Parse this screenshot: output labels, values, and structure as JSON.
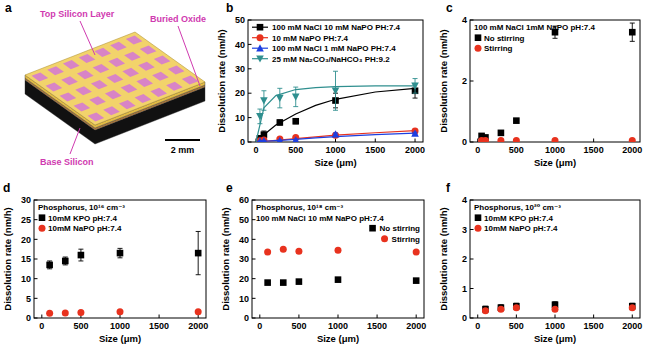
{
  "diagram": {
    "label": "a",
    "labels": [
      "Top Silicon Layer",
      "Buried Oxide",
      "Base Silicon"
    ],
    "scale_bar": "2 mm"
  },
  "chart_data": [
    {
      "label": "b",
      "type": "scatter",
      "x_label": "Size (μm)",
      "y_label": "Dissolution rate (nm/h)",
      "xlim": [
        -100,
        2100
      ],
      "xticks": [
        0,
        500,
        1000,
        1500,
        2000
      ],
      "ylim": [
        0,
        50
      ],
      "yticks": [
        0,
        10,
        20,
        30,
        40,
        50
      ],
      "legend": "upper left",
      "annotations": [],
      "x": [
        50,
        100,
        300,
        500,
        1000,
        2000
      ],
      "series": [
        {
          "name": "100 mM NaCl 10 mM NaPO PH:7.4",
          "color": "#000000",
          "marker": "square",
          "values": [
            1.5,
            3,
            8,
            8.5,
            17,
            21
          ],
          "errors": [
            1,
            1.5,
            1,
            1,
            3,
            3
          ],
          "fit": {
            "x": [
              0,
              100,
              250,
              500,
              750,
              1000,
              1500,
              2000
            ],
            "values": [
              0,
              3,
              7,
              11.5,
              15,
              17.5,
              20.5,
              22
            ]
          }
        },
        {
          "name": "10 mM NaPO PH:7.4",
          "color": "#e8321e",
          "marker": "circle",
          "values": [
            0.5,
            0.8,
            1.2,
            1.8,
            2.8,
            4.5
          ],
          "errors": [
            0.3,
            0.3,
            0.4,
            0.4,
            0.5,
            0.8
          ],
          "fit": {
            "x": [
              0,
              100,
              250,
              500,
              750,
              1000,
              1500,
              2000
            ],
            "values": [
              0,
              0.3,
              0.7,
              1.4,
              2.1,
              2.8,
              3.8,
              4.7
            ]
          }
        },
        {
          "name": "100 mM NaCl 1 mM NaPO PH:7.4",
          "color": "#1c3fe0",
          "marker": "triangle",
          "values": [
            0.3,
            0.5,
            0.6,
            0.8,
            3.2,
            3.5
          ],
          "errors": [
            0.2,
            0.2,
            0.2,
            0.3,
            0.5,
            0.5
          ],
          "fit": {
            "x": [
              0,
              100,
              250,
              500,
              750,
              1000,
              1500,
              2000
            ],
            "values": [
              0,
              0.3,
              0.6,
              1.1,
              1.7,
              2.2,
              3,
              3.6
            ]
          }
        },
        {
          "name": "25 mM Na₂CO₃/NaHCO₃ PH:9.2",
          "color": "#2f8f8f",
          "marker": "triangle-down",
          "values": [
            10.5,
            17,
            18,
            18.5,
            21,
            23
          ],
          "errors": [
            3,
            4,
            4,
            4,
            8,
            3
          ],
          "fit": {
            "x": [
              0,
              100,
              250,
              500,
              750,
              1000,
              1500,
              2000
            ],
            "values": [
              0,
              14,
              19,
              21.5,
              22.3,
              22.7,
              23,
              23
            ]
          }
        }
      ]
    },
    {
      "label": "c",
      "type": "scatter",
      "x_label": "Size (μm)",
      "y_label": "Dissolution rate (nm/h)",
      "xlim": [
        -100,
        2100
      ],
      "xticks": [
        0,
        500,
        1000,
        1500,
        2000
      ],
      "ylim": [
        0,
        4
      ],
      "yticks": [
        0,
        2,
        4
      ],
      "legend": "upper left",
      "annotations": [
        "100 mM NaCl 1mM NaPO pH:7.4"
      ],
      "x": [
        50,
        100,
        300,
        500,
        1000,
        2000
      ],
      "series": [
        {
          "name": "No stirring",
          "color": "#000000",
          "marker": "square",
          "values": [
            0.2,
            0.15,
            0.3,
            0.7,
            3.6,
            3.6
          ],
          "errors": [
            0.05,
            0.05,
            0.05,
            0.05,
            0.2,
            0.3
          ]
        },
        {
          "name": "Stirring",
          "color": "#e8321e",
          "marker": "circle",
          "values": [
            0.05,
            0.05,
            0.05,
            0.05,
            0.05,
            0.05
          ],
          "errors": [
            0,
            0,
            0,
            0,
            0,
            0
          ]
        }
      ]
    },
    {
      "label": "d",
      "type": "scatter",
      "x_label": "Size (μm)",
      "y_label": "Dissolution rate (nm/h)",
      "xlim": [
        -100,
        2100
      ],
      "xticks": [
        0,
        500,
        1000,
        1500,
        2000
      ],
      "ylim": [
        0,
        30
      ],
      "yticks": [
        0,
        5,
        10,
        15,
        20,
        25,
        30
      ],
      "legend": "upper left",
      "annotations": [
        "Phosphorus, 10¹⁶ cm⁻³"
      ],
      "x": [
        100,
        300,
        500,
        1000,
        2000
      ],
      "series": [
        {
          "name": "10mM KPO pH:7.4",
          "color": "#000000",
          "marker": "square",
          "values": [
            13.5,
            14.5,
            16,
            16.5,
            16.5
          ],
          "errors": [
            1,
            1,
            1.5,
            1.2,
            5.5
          ]
        },
        {
          "name": "10mM NaPO pH:7.4",
          "color": "#e8321e",
          "marker": "circle",
          "values": [
            1.2,
            1.3,
            1.4,
            1.6,
            1.6
          ],
          "errors": [
            0.1,
            0.1,
            0.1,
            0.1,
            0.1
          ]
        }
      ]
    },
    {
      "label": "e",
      "type": "scatter",
      "x_label": "Size (μm)",
      "y_label": "Dissolution rate (nm/h)",
      "xlim": [
        -100,
        2100
      ],
      "xticks": [
        0,
        500,
        1000,
        1500,
        2000
      ],
      "ylim": [
        0,
        60
      ],
      "yticks": [
        0,
        10,
        20,
        30,
        40,
        50,
        60
      ],
      "legend": "upper right",
      "annotations": [
        "Phosphorus, 10¹⁸ cm⁻³",
        "100 mM NaCl 10 mM NaPO pH:7.4"
      ],
      "x": [
        100,
        300,
        500,
        1000,
        2000
      ],
      "series": [
        {
          "name": "No stirring",
          "color": "#000000",
          "marker": "square",
          "values": [
            18,
            18,
            18.5,
            19.5,
            19
          ],
          "errors": [
            0.5,
            0.5,
            0.5,
            0.5,
            0.5
          ]
        },
        {
          "name": "Stirring",
          "color": "#e8321e",
          "marker": "circle",
          "values": [
            33.5,
            35,
            34,
            34.5,
            33.5
          ],
          "errors": [
            0.5,
            0.5,
            0.5,
            0.5,
            0.5
          ]
        }
      ]
    },
    {
      "label": "f",
      "type": "scatter",
      "x_label": "Size (μm)",
      "y_label": "Dissolution rate (nm/h)",
      "xlim": [
        -100,
        2100
      ],
      "xticks": [
        0,
        500,
        1000,
        1500,
        2000
      ],
      "ylim": [
        0,
        4
      ],
      "yticks": [
        0,
        1,
        2,
        3,
        4
      ],
      "legend": "upper left",
      "annotations": [
        "Phosphorus, 10²⁰ cm⁻³"
      ],
      "x": [
        100,
        300,
        500,
        1000,
        2000
      ],
      "series": [
        {
          "name": "10mM KPO pH:7.4",
          "color": "#000000",
          "marker": "square",
          "values": [
            0.3,
            0.35,
            0.4,
            0.45,
            0.4
          ],
          "errors": [
            0.1,
            0.1,
            0.1,
            0.1,
            0.1
          ]
        },
        {
          "name": "10mM NaPO pH:7.4",
          "color": "#e8321e",
          "marker": "circle",
          "values": [
            0.25,
            0.3,
            0.35,
            0.3,
            0.35
          ],
          "errors": [
            0.05,
            0.05,
            0.05,
            0.05,
            0.05
          ]
        }
      ]
    }
  ]
}
